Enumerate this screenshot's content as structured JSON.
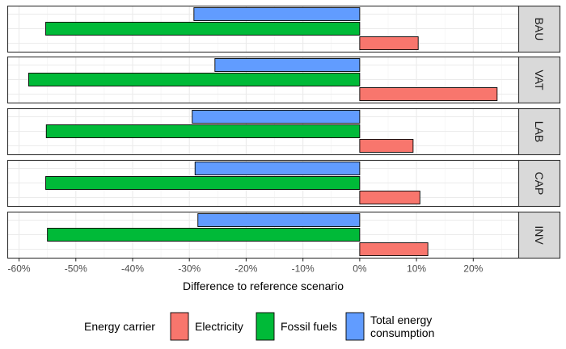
{
  "chart_data": {
    "type": "bar",
    "orientation": "horizontal",
    "facets": [
      "BAU",
      "VAT",
      "LAB",
      "CAP",
      "INV"
    ],
    "series": [
      {
        "name": "Total energy consumption",
        "color": "#619CFF",
        "values": [
          -29.2,
          -25.5,
          -29.5,
          -29.0,
          -28.5
        ]
      },
      {
        "name": "Fossil fuels",
        "color": "#00BA38",
        "values": [
          -55.3,
          -58.3,
          -55.2,
          -55.3,
          -55.0
        ]
      },
      {
        "name": "Electricity",
        "color": "#F8766D",
        "values": [
          10.3,
          24.2,
          9.4,
          10.6,
          12.0
        ]
      }
    ],
    "xlim": [
      -62,
      28
    ],
    "xticks": [
      -60,
      -50,
      -40,
      -30,
      -20,
      -10,
      0,
      10,
      20
    ],
    "xtick_labels": [
      "-60%",
      "-50%",
      "-40%",
      "-30%",
      "-20%",
      "-10%",
      "0%",
      "10%",
      "20%"
    ],
    "xlabel": "Difference to reference scenario",
    "ylabel": "",
    "grid": true,
    "legend": {
      "title": "Energy carrier",
      "position": "bottom",
      "items": [
        {
          "label_lines": [
            "Electricity"
          ],
          "color": "#F8766D"
        },
        {
          "label_lines": [
            "Fossil fuels"
          ],
          "color": "#00BA38"
        },
        {
          "label_lines": [
            "Total energy",
            "consumption"
          ],
          "color": "#619CFF"
        }
      ]
    }
  }
}
